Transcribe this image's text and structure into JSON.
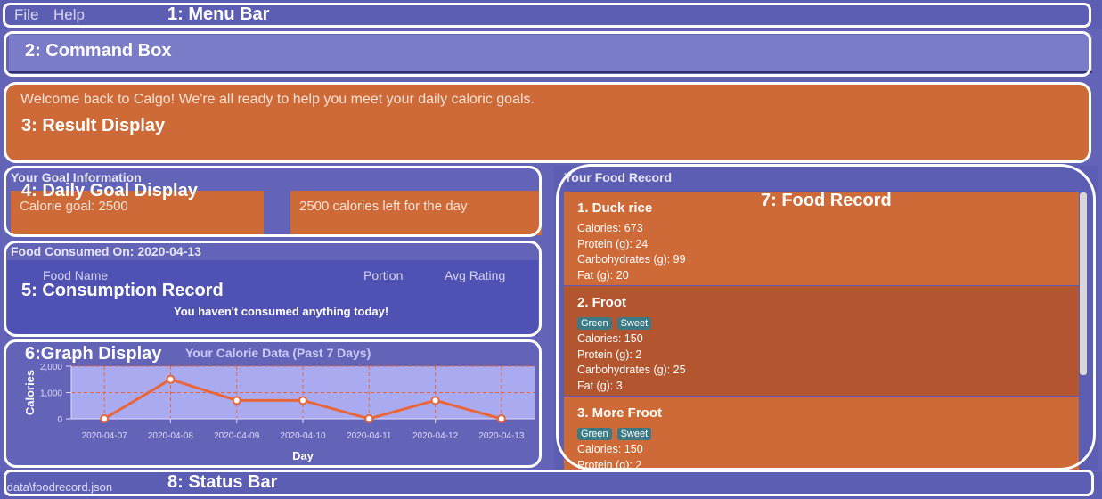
{
  "menu": {
    "file": "File",
    "help": "Help"
  },
  "annotations": {
    "a1": "1: Menu Bar",
    "a2": "2: Command Box",
    "a3": "3: Result Display",
    "a4": "4: Daily Goal Display",
    "a5": "5: Consumption Record",
    "a6": "6:Graph Display",
    "a7": "7: Food Record",
    "a8": "8: Status Bar"
  },
  "result": {
    "text": "Welcome back to Calgo! We're all ready to help you meet your daily caloric goals."
  },
  "goal": {
    "section_title": "Your Goal Information",
    "calorie_goal": "Calorie goal: 2500",
    "calories_left": "2500 calories left for the day"
  },
  "consumption": {
    "title": "Food Consumed On: 2020-04-13",
    "col_food": "Food Name",
    "col_portion": "Portion",
    "col_rating": "Avg Rating",
    "empty": "You haven't consumed anything today!"
  },
  "graph": {
    "title": "Your Calorie Data (Past 7 Days)"
  },
  "chart_data": {
    "type": "line",
    "title": "Your Calorie Data (Past 7 Days)",
    "xlabel": "Day",
    "ylabel": "Calories",
    "categories": [
      "2020-04-07",
      "2020-04-08",
      "2020-04-09",
      "2020-04-10",
      "2020-04-11",
      "2020-04-12",
      "2020-04-13"
    ],
    "values": [
      0,
      1500,
      700,
      700,
      0,
      700,
      0
    ],
    "yticks": [
      "0",
      "1,000",
      "2,000"
    ],
    "ylim": [
      0,
      2000
    ],
    "grid": true,
    "colors": {
      "line": "#e8663a",
      "plot_bg": "#a9aaf0",
      "grid": "#e8663a"
    }
  },
  "food_record": {
    "section_title": "Your Food Record",
    "items": [
      {
        "title": "1.  Duck rice",
        "tags": [],
        "lines": [
          "Calories: 673",
          "Protein (g): 24",
          "Carbohydrates (g): 99",
          "Fat (g): 20"
        ]
      },
      {
        "title": "2.  Froot",
        "tags": [
          "Green",
          "Sweet"
        ],
        "lines": [
          "Calories: 150",
          "Protein (g): 2",
          "Carbohydrates (g): 25",
          "Fat (g): 3"
        ]
      },
      {
        "title": "3.  More Froot",
        "tags": [
          "Green",
          "Sweet"
        ],
        "lines": [
          "Calories: 150",
          "Protein (g): 2"
        ]
      }
    ]
  },
  "status": {
    "path": "\\data\\foodrecord.json"
  },
  "colors": {
    "background": "#6364b8",
    "accent_orange": "#cd6a37",
    "outline": "#ffffff"
  }
}
